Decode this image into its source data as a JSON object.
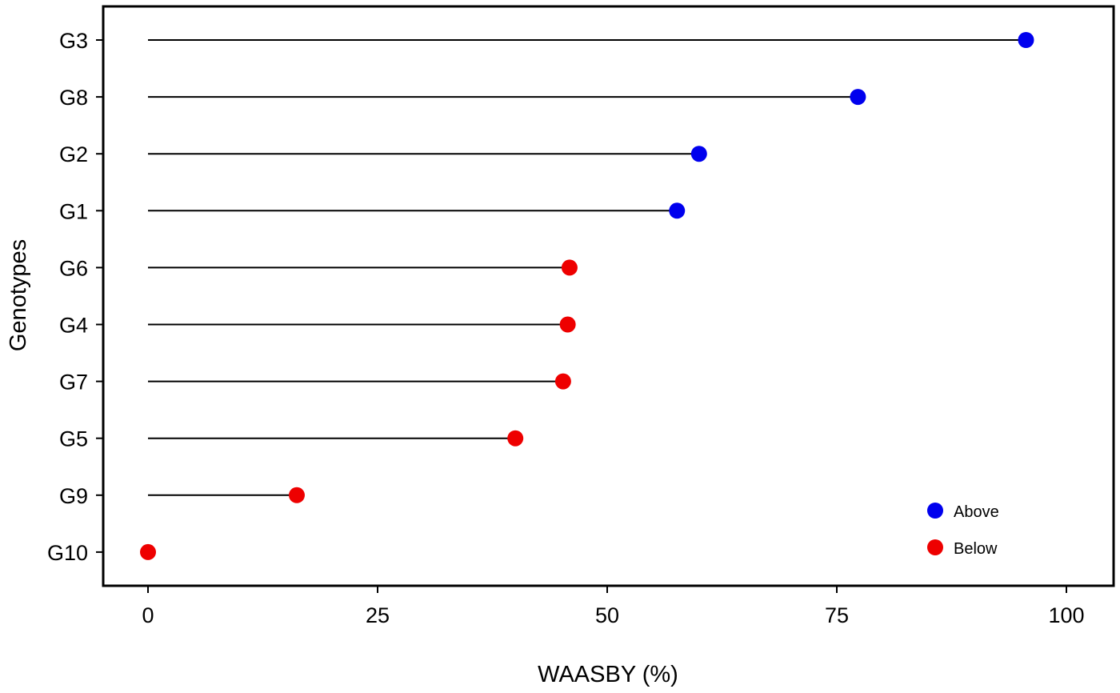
{
  "chart_data": {
    "type": "lollipop",
    "xlabel": "WAASBY (%)",
    "ylabel": "Genotypes",
    "xlim": [
      -5,
      105
    ],
    "xticks": [
      0,
      25,
      50,
      75,
      100
    ],
    "grid": false,
    "legend_position": "bottom-right",
    "categories": [
      "G10",
      "G9",
      "G5",
      "G7",
      "G4",
      "G6",
      "G1",
      "G2",
      "G8",
      "G3"
    ],
    "values": [
      0,
      16.2,
      40.0,
      45.2,
      45.7,
      45.9,
      57.6,
      60.0,
      77.3,
      95.6
    ],
    "groups": [
      "Below",
      "Below",
      "Below",
      "Below",
      "Below",
      "Below",
      "Above",
      "Above",
      "Above",
      "Above"
    ],
    "legend": [
      {
        "label": "Above",
        "color": "#0000ee"
      },
      {
        "label": "Below",
        "color": "#ee0000"
      }
    ],
    "colors": {
      "Above": "#0000ee",
      "Below": "#ee0000"
    }
  }
}
